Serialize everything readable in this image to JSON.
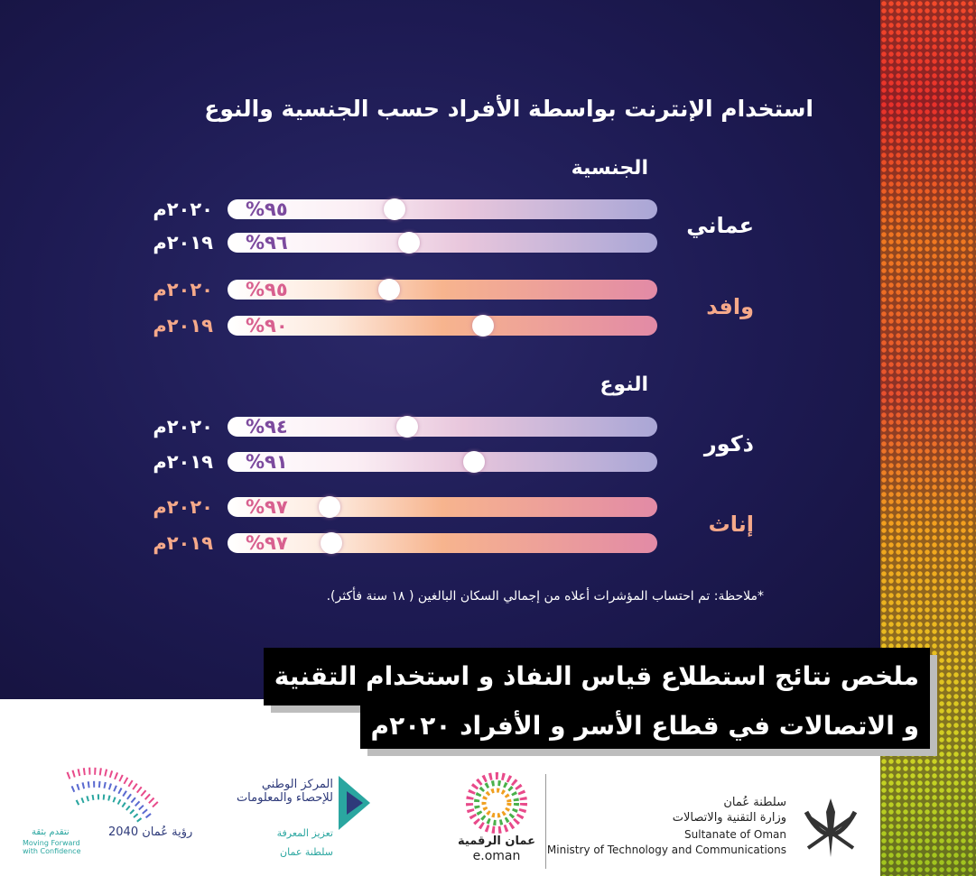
{
  "title": "استخدام الإنترنت بواسطة الأفراد حسب الجنسية والنوع",
  "sections": [
    {
      "heading": "الجنسية",
      "groups": [
        {
          "label": "عماني",
          "rows": [
            {
              "year": "٢٠٢٠م",
              "value": "٩٥%"
            },
            {
              "year": "٢٠١٩م",
              "value": "٩٦%"
            }
          ]
        },
        {
          "label": "وافد",
          "rows": [
            {
              "year": "٢٠٢٠م",
              "value": "٩٥%"
            },
            {
              "year": "٢٠١٩م",
              "value": "٩٠%"
            }
          ]
        }
      ]
    },
    {
      "heading": "النوع",
      "groups": [
        {
          "label": "ذكور",
          "rows": [
            {
              "year": "٢٠٢٠م",
              "value": "٩٤%"
            },
            {
              "year": "٢٠١٩م",
              "value": "٩١%"
            }
          ]
        },
        {
          "label": "إناث",
          "rows": [
            {
              "year": "٢٠٢٠م",
              "value": "٩٧%"
            },
            {
              "year": "٢٠١٩م",
              "value": "٩٧%"
            }
          ]
        }
      ]
    }
  ],
  "note": "*ملاحظة: تم احتساب المؤشرات أعلاه من إجمالي السكان البالغين ( ١٨ سنة فأكثر).",
  "banner": {
    "lines": [
      "ملخص نتائج استطلاع قياس النفاذ و استخدام التقنية",
      "و الاتصالات  في قطاع الأسر  و الأفراد  ٢٠٢٠م"
    ]
  },
  "footer": {
    "ministry": [
      "سلطنة عُمان",
      "وزارة التقنية والاتصالات",
      "Sultanate of Oman",
      "Ministry of Technology and Communications"
    ],
    "eoman": [
      "عمان الرقمية",
      "e.oman"
    ],
    "ncsi": [
      "المركز الوطني للإحصاء والمعلومات",
      "تعزيز المعرفة",
      "سلطنة عمان"
    ],
    "vision": [
      "رؤية عُمان 2040",
      "نتقدم بثقة",
      "Moving Forward with Confidence"
    ]
  }
}
